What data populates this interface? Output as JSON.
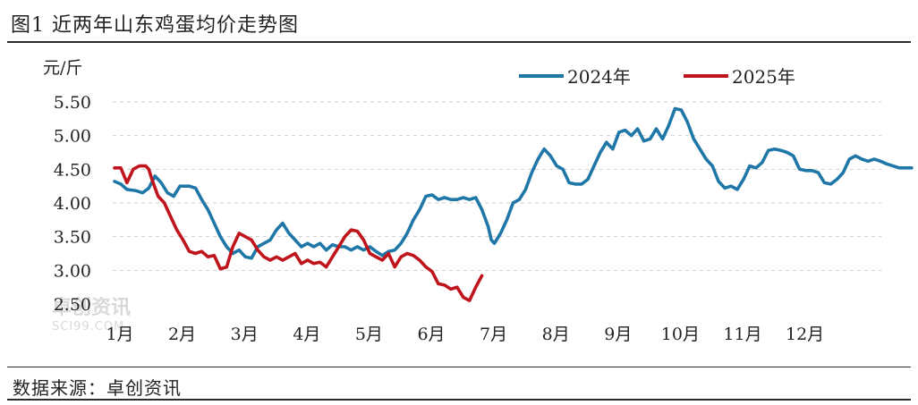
{
  "figure": {
    "title": "图1  近两年山东鸡蛋均价走势图",
    "source": "数据来源：卓创资讯",
    "watermark": {
      "text": "卓创资讯",
      "sub": "SCI99.COM"
    }
  },
  "chart_data": {
    "type": "line",
    "ylabel": "元/斤",
    "ylim": [
      2.5,
      5.5
    ],
    "yticks": [
      "5.50",
      "5.00",
      "4.50",
      "4.00",
      "3.50",
      "3.00",
      "2.50"
    ],
    "x_categories": [
      "1月",
      "2月",
      "3月",
      "4月",
      "5月",
      "6月",
      "7月",
      "8月",
      "9月",
      "10月",
      "11月",
      "12月"
    ],
    "legend_position": "top-right",
    "grid": "horizontal dashed",
    "series": [
      {
        "name": "2024年",
        "color": "#1f77a8",
        "points": [
          [
            0.0,
            4.32
          ],
          [
            0.1,
            4.28
          ],
          [
            0.2,
            4.2
          ],
          [
            0.35,
            4.18
          ],
          [
            0.45,
            4.15
          ],
          [
            0.55,
            4.22
          ],
          [
            0.65,
            4.4
          ],
          [
            0.75,
            4.3
          ],
          [
            0.85,
            4.15
          ],
          [
            0.95,
            4.1
          ],
          [
            1.05,
            4.25
          ],
          [
            1.2,
            4.25
          ],
          [
            1.3,
            4.22
          ],
          [
            1.4,
            4.05
          ],
          [
            1.5,
            3.9
          ],
          [
            1.6,
            3.7
          ],
          [
            1.7,
            3.5
          ],
          [
            1.8,
            3.35
          ],
          [
            1.9,
            3.25
          ],
          [
            2.0,
            3.3
          ],
          [
            2.1,
            3.2
          ],
          [
            2.2,
            3.18
          ],
          [
            2.3,
            3.35
          ],
          [
            2.4,
            3.4
          ],
          [
            2.5,
            3.45
          ],
          [
            2.6,
            3.6
          ],
          [
            2.7,
            3.7
          ],
          [
            2.8,
            3.55
          ],
          [
            2.9,
            3.45
          ],
          [
            3.0,
            3.35
          ],
          [
            3.1,
            3.4
          ],
          [
            3.2,
            3.35
          ],
          [
            3.3,
            3.4
          ],
          [
            3.4,
            3.3
          ],
          [
            3.5,
            3.38
          ],
          [
            3.6,
            3.35
          ],
          [
            3.7,
            3.35
          ],
          [
            3.8,
            3.3
          ],
          [
            3.9,
            3.35
          ],
          [
            4.0,
            3.3
          ],
          [
            4.1,
            3.35
          ],
          [
            4.2,
            3.28
          ],
          [
            4.3,
            3.22
          ],
          [
            4.4,
            3.28
          ],
          [
            4.5,
            3.3
          ],
          [
            4.6,
            3.4
          ],
          [
            4.7,
            3.55
          ],
          [
            4.8,
            3.75
          ],
          [
            4.9,
            3.9
          ],
          [
            5.0,
            4.1
          ],
          [
            5.1,
            4.12
          ],
          [
            5.2,
            4.05
          ],
          [
            5.3,
            4.08
          ],
          [
            5.4,
            4.05
          ],
          [
            5.5,
            4.05
          ],
          [
            5.6,
            4.08
          ],
          [
            5.7,
            4.05
          ],
          [
            5.8,
            4.08
          ],
          [
            5.9,
            3.9
          ],
          [
            6.0,
            3.65
          ],
          [
            6.05,
            3.45
          ],
          [
            6.1,
            3.4
          ],
          [
            6.2,
            3.55
          ],
          [
            6.3,
            3.75
          ],
          [
            6.4,
            4.0
          ],
          [
            6.5,
            4.05
          ],
          [
            6.6,
            4.2
          ],
          [
            6.7,
            4.45
          ],
          [
            6.8,
            4.65
          ],
          [
            6.9,
            4.8
          ],
          [
            7.0,
            4.7
          ],
          [
            7.1,
            4.55
          ],
          [
            7.2,
            4.5
          ],
          [
            7.3,
            4.3
          ],
          [
            7.4,
            4.28
          ],
          [
            7.5,
            4.28
          ],
          [
            7.6,
            4.35
          ],
          [
            7.7,
            4.55
          ],
          [
            7.8,
            4.75
          ],
          [
            7.9,
            4.9
          ],
          [
            8.0,
            4.8
          ],
          [
            8.1,
            5.05
          ],
          [
            8.2,
            5.08
          ],
          [
            8.3,
            5.0
          ],
          [
            8.4,
            5.1
          ],
          [
            8.5,
            4.92
          ],
          [
            8.6,
            4.95
          ],
          [
            8.7,
            5.1
          ],
          [
            8.8,
            4.95
          ],
          [
            8.9,
            5.15
          ],
          [
            9.0,
            5.4
          ],
          [
            9.1,
            5.38
          ],
          [
            9.2,
            5.2
          ],
          [
            9.3,
            4.95
          ],
          [
            9.4,
            4.8
          ],
          [
            9.5,
            4.65
          ],
          [
            9.6,
            4.55
          ],
          [
            9.7,
            4.32
          ],
          [
            9.8,
            4.22
          ],
          [
            9.9,
            4.25
          ],
          [
            10.0,
            4.2
          ],
          [
            10.1,
            4.35
          ],
          [
            10.2,
            4.55
          ],
          [
            10.3,
            4.52
          ],
          [
            10.4,
            4.6
          ],
          [
            10.5,
            4.78
          ],
          [
            10.6,
            4.8
          ],
          [
            10.7,
            4.78
          ],
          [
            10.8,
            4.75
          ],
          [
            10.9,
            4.7
          ],
          [
            11.0,
            4.5
          ],
          [
            11.1,
            4.48
          ],
          [
            11.2,
            4.48
          ],
          [
            11.3,
            4.45
          ],
          [
            11.4,
            4.3
          ],
          [
            11.5,
            4.28
          ],
          [
            11.6,
            4.35
          ],
          [
            11.7,
            4.45
          ],
          [
            11.8,
            4.65
          ],
          [
            11.9,
            4.7
          ],
          [
            12.0,
            4.65
          ],
          [
            12.1,
            4.62
          ],
          [
            12.2,
            4.65
          ],
          [
            12.3,
            4.62
          ],
          [
            12.4,
            4.58
          ],
          [
            12.5,
            4.55
          ],
          [
            12.6,
            4.52
          ],
          [
            12.7,
            4.52
          ],
          [
            12.8,
            4.52
          ]
        ]
      },
      {
        "name": "2025年",
        "color": "#c0141c",
        "points": [
          [
            0.0,
            4.52
          ],
          [
            0.1,
            4.52
          ],
          [
            0.2,
            4.3
          ],
          [
            0.3,
            4.5
          ],
          [
            0.4,
            4.55
          ],
          [
            0.5,
            4.55
          ],
          [
            0.55,
            4.5
          ],
          [
            0.6,
            4.35
          ],
          [
            0.7,
            4.1
          ],
          [
            0.8,
            4.0
          ],
          [
            0.9,
            3.8
          ],
          [
            1.0,
            3.6
          ],
          [
            1.1,
            3.45
          ],
          [
            1.2,
            3.28
          ],
          [
            1.3,
            3.25
          ],
          [
            1.4,
            3.28
          ],
          [
            1.5,
            3.2
          ],
          [
            1.6,
            3.22
          ],
          [
            1.7,
            3.02
          ],
          [
            1.8,
            3.05
          ],
          [
            1.9,
            3.35
          ],
          [
            2.0,
            3.55
          ],
          [
            2.1,
            3.5
          ],
          [
            2.2,
            3.45
          ],
          [
            2.3,
            3.3
          ],
          [
            2.4,
            3.2
          ],
          [
            2.5,
            3.15
          ],
          [
            2.6,
            3.2
          ],
          [
            2.7,
            3.15
          ],
          [
            2.8,
            3.2
          ],
          [
            2.9,
            3.25
          ],
          [
            3.0,
            3.1
          ],
          [
            3.1,
            3.15
          ],
          [
            3.2,
            3.1
          ],
          [
            3.3,
            3.12
          ],
          [
            3.4,
            3.05
          ],
          [
            3.5,
            3.2
          ],
          [
            3.6,
            3.35
          ],
          [
            3.7,
            3.5
          ],
          [
            3.8,
            3.6
          ],
          [
            3.9,
            3.58
          ],
          [
            4.0,
            3.45
          ],
          [
            4.1,
            3.25
          ],
          [
            4.2,
            3.2
          ],
          [
            4.3,
            3.15
          ],
          [
            4.4,
            3.25
          ],
          [
            4.5,
            3.05
          ],
          [
            4.6,
            3.2
          ],
          [
            4.7,
            3.25
          ],
          [
            4.8,
            3.22
          ],
          [
            4.9,
            3.15
          ],
          [
            5.0,
            3.05
          ],
          [
            5.1,
            2.98
          ],
          [
            5.2,
            2.8
          ],
          [
            5.3,
            2.78
          ],
          [
            5.4,
            2.72
          ],
          [
            5.5,
            2.75
          ],
          [
            5.6,
            2.6
          ],
          [
            5.7,
            2.55
          ],
          [
            5.8,
            2.75
          ],
          [
            5.9,
            2.92
          ]
        ]
      }
    ]
  }
}
